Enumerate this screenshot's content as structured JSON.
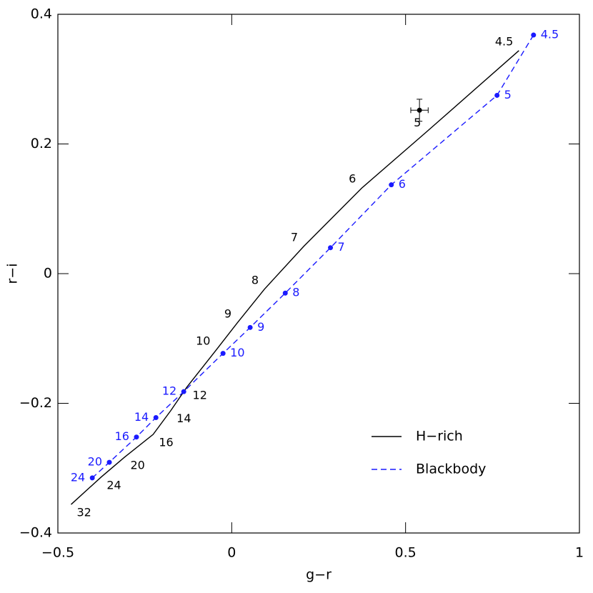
{
  "chart_data": {
    "type": "line",
    "xlabel": "g−r",
    "ylabel": "r−i",
    "xlim": [
      -0.5,
      1
    ],
    "ylim": [
      -0.4,
      0.4
    ],
    "xticks": [
      {
        "value": -0.5,
        "label": "−0.5"
      },
      0,
      0.5,
      1
    ],
    "yticks": [
      {
        "value": -0.4,
        "label": "−0.4"
      },
      {
        "value": -0.2,
        "label": "−0.2"
      },
      0,
      0.2,
      0.4
    ],
    "legend": "lower right",
    "series": [
      {
        "name": "H−rich",
        "color": "#000000",
        "style": "solid",
        "x": [
          0.826,
          0.561,
          0.374,
          0.207,
          0.094,
          0.016,
          -0.045,
          -0.129,
          -0.175,
          -0.226,
          -0.308,
          -0.376,
          -0.462
        ],
        "values": [
          0.344,
          0.219,
          0.132,
          0.042,
          -0.024,
          -0.076,
          -0.118,
          -0.175,
          -0.211,
          -0.248,
          -0.283,
          -0.314,
          -0.356
        ],
        "labels": [
          "4.5",
          "5",
          "6",
          "7",
          "8",
          "9",
          "10",
          "12",
          "14",
          "16",
          "20",
          "24",
          "32"
        ]
      },
      {
        "name": "Blackbody",
        "color": "#1a1aff",
        "style": "dashed",
        "markers": true,
        "x": [
          0.868,
          0.763,
          0.459,
          0.284,
          0.154,
          0.053,
          -0.025,
          -0.138,
          -0.218,
          -0.274,
          -0.352,
          -0.401
        ],
        "values": [
          0.368,
          0.275,
          0.137,
          0.04,
          -0.03,
          -0.083,
          -0.123,
          -0.182,
          -0.222,
          -0.252,
          -0.291,
          -0.315
        ],
        "labels": [
          "4.5",
          "5",
          "6",
          "7",
          "8",
          "9",
          "10",
          "12",
          "14",
          "16",
          "20",
          "24"
        ]
      }
    ],
    "observed": {
      "x": 0.54,
      "y": 0.252,
      "xerr": 0.025,
      "yerr": 0.017,
      "color": "#000000"
    }
  }
}
